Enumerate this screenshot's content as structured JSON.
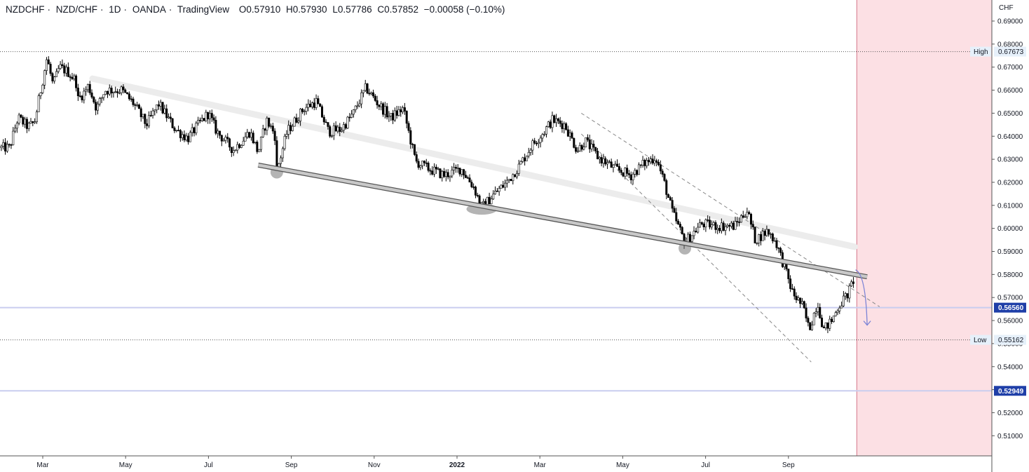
{
  "header": {
    "symbol": "NZDCHF",
    "pair": "NZD/CHF",
    "interval": "1D",
    "exchange": "OANDA",
    "platform": "TradingView",
    "separator": "·",
    "open_key": "O",
    "open": "0.57910",
    "high_key": "H",
    "high": "0.57930",
    "low_key": "L",
    "low": "0.57786",
    "close_key": "C",
    "close": "0.57852",
    "change": "−0.00058 (−0.10%)"
  },
  "chart_data": {
    "type": "candlestick",
    "currency": "CHF",
    "y_ticks": [
      "0.69000",
      "0.68000",
      "0.67000",
      "0.66000",
      "0.65000",
      "0.64000",
      "0.63000",
      "0.62000",
      "0.61000",
      "0.60000",
      "0.59000",
      "0.58000",
      "0.57000",
      "0.56000",
      "0.55000",
      "0.54000",
      "0.53000",
      "0.52000",
      "0.51000"
    ],
    "ylim": [
      0.5035,
      0.7044
    ],
    "x_ticks": [
      {
        "label": "Mar",
        "t": 0.0
      },
      {
        "label": "May",
        "t": 2.0
      },
      {
        "label": "Jul",
        "t": 4.0
      },
      {
        "label": "Sep",
        "t": 6.0
      },
      {
        "label": "Nov",
        "t": 8.0
      },
      {
        "label": "2022",
        "t": 10.0,
        "bold": true
      },
      {
        "label": "Mar",
        "t": 12.0
      },
      {
        "label": "May",
        "t": 14.0
      },
      {
        "label": "Jul",
        "t": 16.0
      },
      {
        "label": "Sep",
        "t": 18.0
      }
    ],
    "price_anchors": [
      [
        -0.8,
        0.635
      ],
      [
        -0.6,
        0.648
      ],
      [
        -0.35,
        0.644
      ],
      [
        -0.2,
        0.646
      ],
      [
        -0.05,
        0.66
      ],
      [
        0.1,
        0.674
      ],
      [
        0.25,
        0.662
      ],
      [
        0.4,
        0.67
      ],
      [
        0.6,
        0.668
      ],
      [
        0.8,
        0.664
      ],
      [
        0.85,
        0.656
      ],
      [
        1.0,
        0.659
      ],
      [
        1.1,
        0.662
      ],
      [
        1.3,
        0.652
      ],
      [
        1.5,
        0.66
      ],
      [
        1.9,
        0.66
      ],
      [
        2.2,
        0.654
      ],
      [
        2.5,
        0.645
      ],
      [
        2.8,
        0.654
      ],
      [
        3.2,
        0.643
      ],
      [
        3.5,
        0.639
      ],
      [
        3.8,
        0.646
      ],
      [
        4.0,
        0.65
      ],
      [
        4.2,
        0.642
      ],
      [
        4.6,
        0.634
      ],
      [
        5.0,
        0.642
      ],
      [
        5.2,
        0.633
      ],
      [
        5.4,
        0.647
      ],
      [
        5.6,
        0.641
      ],
      [
        5.65,
        0.625
      ],
      [
        5.9,
        0.642
      ],
      [
        6.3,
        0.652
      ],
      [
        6.6,
        0.655
      ],
      [
        6.9,
        0.642
      ],
      [
        7.2,
        0.643
      ],
      [
        7.5,
        0.65
      ],
      [
        7.8,
        0.661
      ],
      [
        8.1,
        0.654
      ],
      [
        8.4,
        0.648
      ],
      [
        8.7,
        0.652
      ],
      [
        9.0,
        0.629
      ],
      [
        9.3,
        0.626
      ],
      [
        9.7,
        0.623
      ],
      [
        10.1,
        0.626
      ],
      [
        10.4,
        0.618
      ],
      [
        10.6,
        0.609
      ],
      [
        10.9,
        0.615
      ],
      [
        11.2,
        0.62
      ],
      [
        11.5,
        0.627
      ],
      [
        11.8,
        0.636
      ],
      [
        12.1,
        0.642
      ],
      [
        12.3,
        0.647
      ],
      [
        12.6,
        0.645
      ],
      [
        12.9,
        0.634
      ],
      [
        13.1,
        0.638
      ],
      [
        13.4,
        0.631
      ],
      [
        13.8,
        0.626
      ],
      [
        14.2,
        0.623
      ],
      [
        14.5,
        0.628
      ],
      [
        14.8,
        0.631
      ],
      [
        15.0,
        0.62
      ],
      [
        15.2,
        0.607
      ],
      [
        15.5,
        0.594
      ],
      [
        15.9,
        0.602
      ],
      [
        16.3,
        0.601
      ],
      [
        16.7,
        0.601
      ],
      [
        17.0,
        0.608
      ],
      [
        17.2,
        0.595
      ],
      [
        17.5,
        0.599
      ],
      [
        17.7,
        0.594
      ],
      [
        17.85,
        0.586
      ],
      [
        18.1,
        0.572
      ],
      [
        18.35,
        0.566
      ],
      [
        18.5,
        0.556
      ],
      [
        18.7,
        0.568
      ],
      [
        18.85,
        0.556
      ],
      [
        19.05,
        0.56
      ],
      [
        19.2,
        0.566
      ],
      [
        19.45,
        0.572
      ],
      [
        19.6,
        0.5791
      ]
    ],
    "annotations": {
      "upper_trend_band": {
        "from": [
          1.2,
          0.665
        ],
        "to": [
          19.6,
          0.592
        ]
      },
      "lower_support_line": {
        "from": [
          5.2,
          0.6275
        ],
        "to": [
          19.9,
          0.579
        ]
      },
      "channel_upper": {
        "from": [
          13.0,
          0.65
        ],
        "to": [
          20.2,
          0.566
        ]
      },
      "channel_lower": {
        "from": [
          13.0,
          0.641
        ],
        "to": [
          18.55,
          0.542
        ]
      },
      "touch_points": [
        [
          5.65,
          0.625
        ],
        [
          10.6,
          0.609
        ],
        [
          15.5,
          0.592
        ]
      ],
      "projection_arrow": {
        "from": [
          19.62,
          0.582
        ],
        "to": [
          19.9,
          0.558
        ]
      },
      "forecast_zone_start_t": 19.65
    },
    "horizontal_lines": [
      {
        "name": "high",
        "label": "High",
        "value": 0.67673,
        "value_text": "0.67673",
        "style": "dotted"
      },
      {
        "name": "low",
        "label": "Low",
        "value": 0.55162,
        "value_text": "0.55162",
        "style": "dotted"
      },
      {
        "name": "level-1",
        "value": 0.5656,
        "value_text": "0.56560",
        "style": "solid",
        "color": "#c9cdef"
      },
      {
        "name": "level-2",
        "value": 0.52949,
        "value_text": "0.52949",
        "style": "solid",
        "color": "#c9cdef"
      }
    ]
  },
  "colors": {
    "candle": "#000000",
    "trend_band": "#ececec",
    "support_line": "#c8c8c8",
    "channel": "#888888",
    "arrow": "#7b83d6",
    "forecast_zone": "#fce0e4",
    "forecast_border": "#d4758a",
    "level_badge": "#1f3fa8",
    "label_box": "#e6f0fa"
  }
}
